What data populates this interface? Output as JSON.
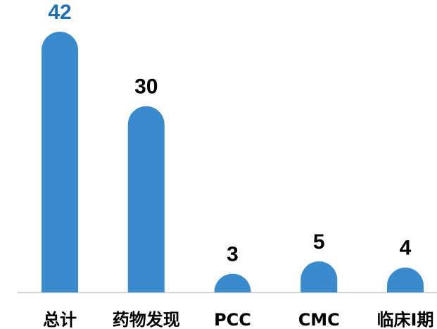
{
  "chart_data": {
    "type": "bar",
    "categories": [
      "总计",
      "药物发现",
      "PCC",
      "CMC",
      "临床I期"
    ],
    "values": [
      42,
      30,
      3,
      5,
      4
    ],
    "color": "#3a8bcd",
    "value_label_colors": [
      "#1f6fb5",
      "#000000",
      "#000000",
      "#000000",
      "#000000"
    ],
    "ylim": [
      0,
      42
    ]
  }
}
